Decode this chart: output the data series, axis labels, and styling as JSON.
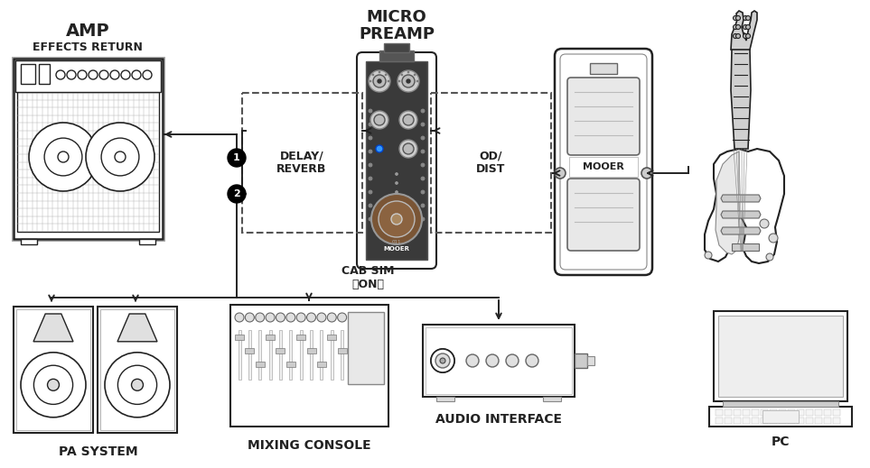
{
  "bg_color": "#ffffff",
  "line_color": "#222222",
  "dashed_box_color": "#555555",
  "title_amp": "AMP",
  "subtitle_amp": "EFFECTS RETURN",
  "title_preamp": "MICRO\nPREAMP",
  "label_delay": "DELAY/\nREVERB",
  "label_od": "OD/\nDIST",
  "label_cabsim": "CAB SIM\n（ON）",
  "label_pa": "PA SYSTEM",
  "label_mixer": "MIXING CONSOLE",
  "label_audio": "AUDIO INTERFACE",
  "label_pc": "PC",
  "label_mooer": "MOOER",
  "figsize": [
    9.63,
    5.19
  ],
  "dpi": 100
}
